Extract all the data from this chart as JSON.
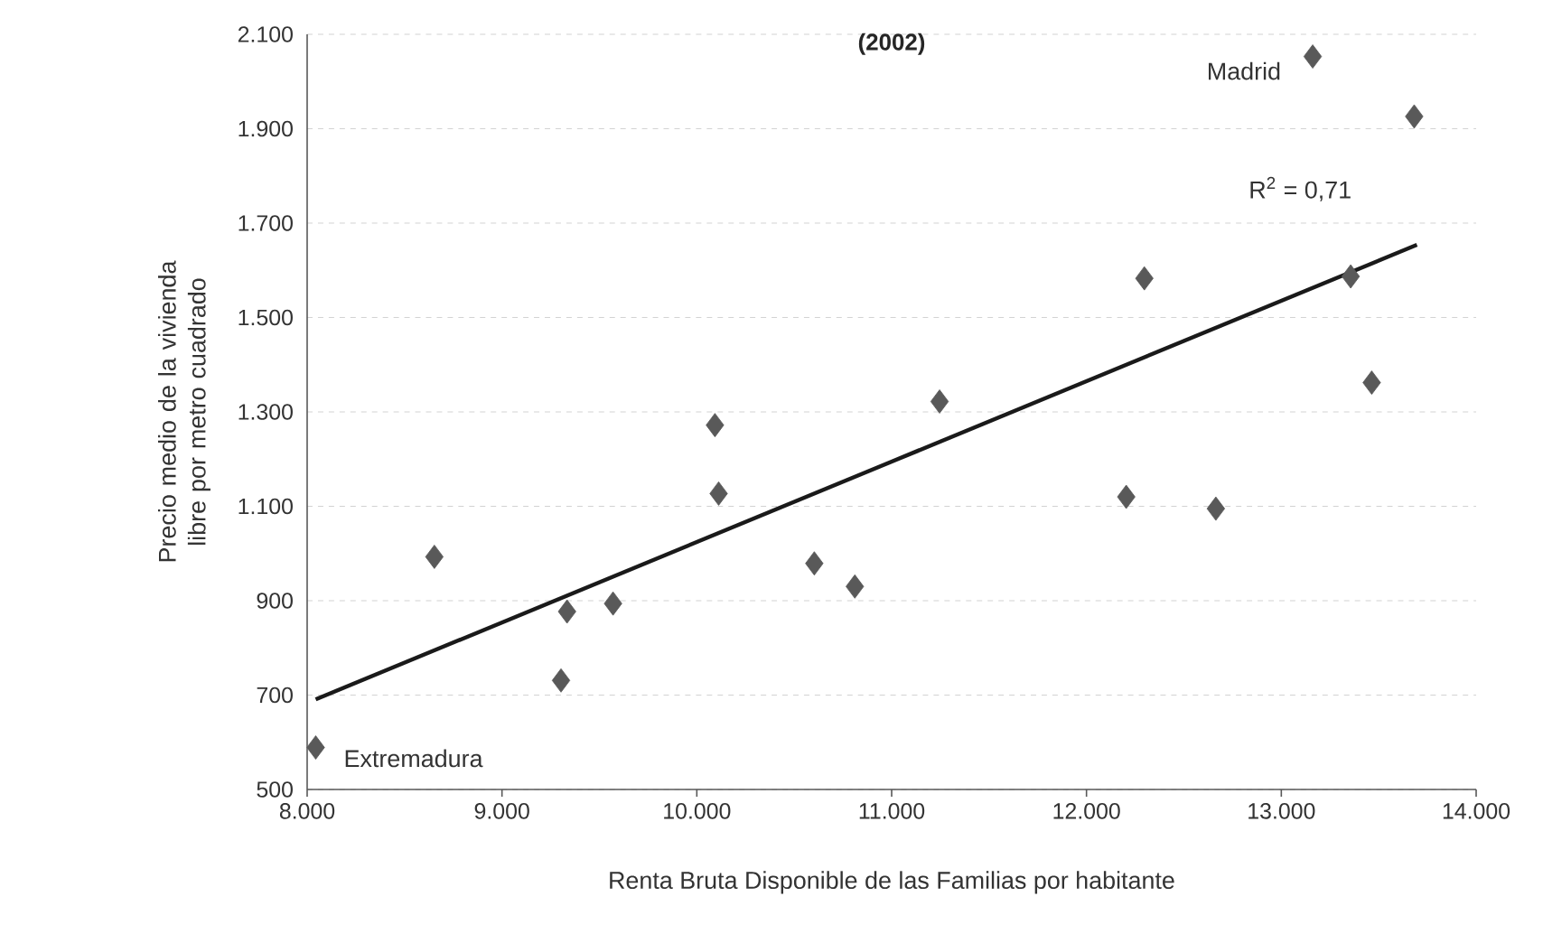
{
  "chart_data": {
    "type": "scatter",
    "title": "(2002)",
    "xlabel": "Renta Bruta Disponible de las Familias por habitante",
    "ylabel": "Precio medio de la vivienda libre por metro cuadrado",
    "xlim": [
      8000,
      14000
    ],
    "ylim": [
      500,
      2100
    ],
    "xticks": [
      {
        "value": 8000,
        "label": "8.000"
      },
      {
        "value": 9000,
        "label": "9.000"
      },
      {
        "value": 10000,
        "label": "10.000"
      },
      {
        "value": 11000,
        "label": "11.000"
      },
      {
        "value": 12000,
        "label": "12.000"
      },
      {
        "value": 13000,
        "label": "13.000"
      },
      {
        "value": 14000,
        "label": "14.000"
      }
    ],
    "yticks": [
      500,
      700,
      900,
      {
        "value": 1100,
        "label": "1.100"
      },
      {
        "value": 1300,
        "label": "1.300"
      },
      {
        "value": 1500,
        "label": "1.500"
      },
      {
        "value": 1700,
        "label": "1.700"
      },
      {
        "value": 1900,
        "label": "1.900"
      },
      {
        "value": 2100,
        "label": "2.100"
      }
    ],
    "grid": "y",
    "marker": "diamond",
    "series": [
      {
        "color": "#595959",
        "x": [
          8044,
          8653,
          9303,
          9334,
          9570,
          10093,
          10112,
          10603,
          10811,
          11246,
          12204,
          12297,
          12664,
          13161,
          13356,
          13464,
          13682
        ],
        "values": [
          589,
          993,
          731,
          877,
          894,
          1272,
          1127,
          979,
          930,
          1322,
          1120,
          1583,
          1095,
          2053,
          1587,
          1362,
          1926
        ]
      },
      {
        "type": "line",
        "color": "#1a1a1a",
        "marker": "none",
        "x": [
          8044,
          13696
        ],
        "values": [
          691,
          1654
        ]
      }
    ],
    "annotations": [
      {
        "text": "Extremadura",
        "x": 8044,
        "y": 589
      },
      {
        "text": "Madrid",
        "x": 13161,
        "y": 2053
      },
      "R$^{2}$ = 0,71"
    ]
  }
}
